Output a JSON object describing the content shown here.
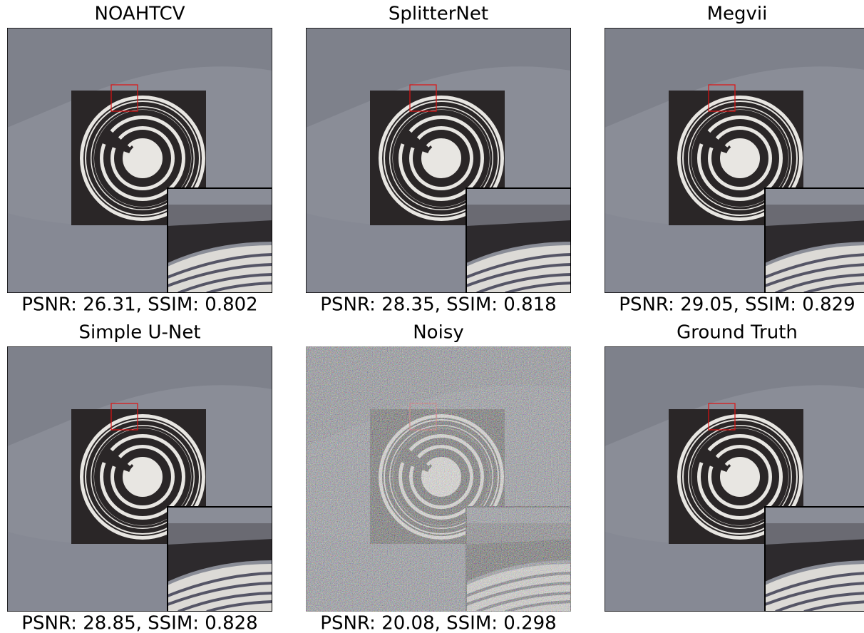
{
  "panels": [
    {
      "title": "NOAHTCV",
      "caption": "PSNR: 26.31, SSIM: 0.802"
    },
    {
      "title": "SplitterNet",
      "caption": "PSNR: 28.35, SSIM: 0.818"
    },
    {
      "title": "Megvii",
      "caption": "PSNR: 29.05, SSIM: 0.829"
    },
    {
      "title": "Simple U-Net",
      "caption": "PSNR: 28.85, SSIM: 0.828"
    },
    {
      "title": "Noisy",
      "caption": "PSNR: 20.08, SSIM: 0.298"
    },
    {
      "title": "Ground Truth"
    }
  ]
}
